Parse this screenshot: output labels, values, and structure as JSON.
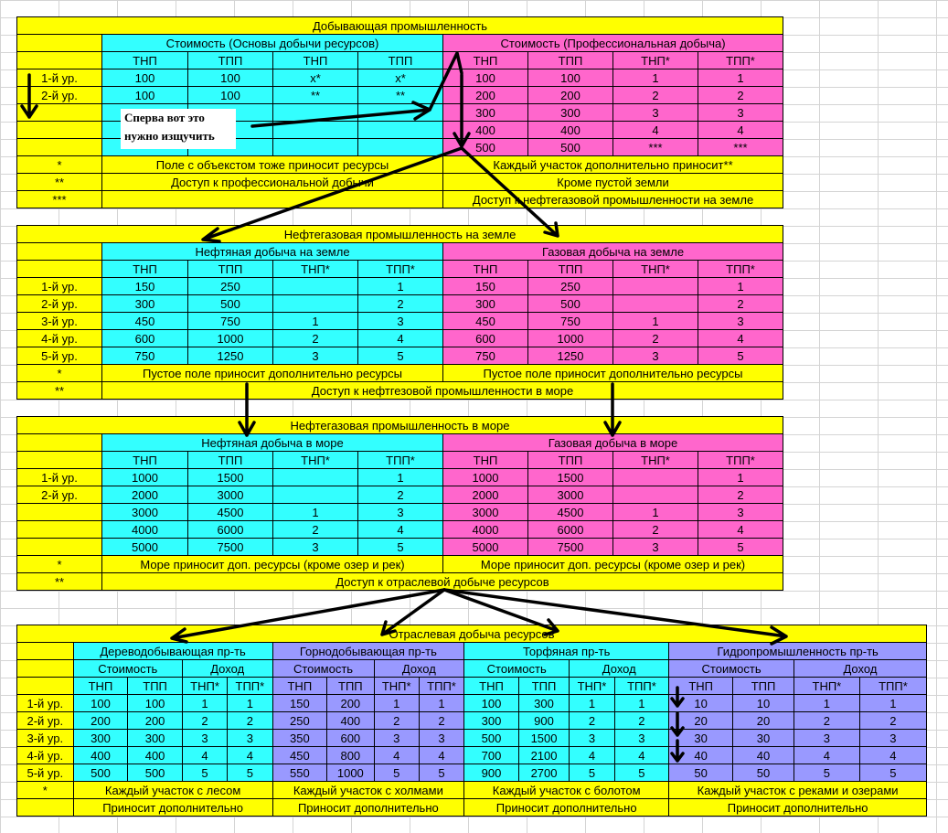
{
  "t1": {
    "title": "Добывающая промышленность",
    "cost_basic": "Стоимость (Основы добычи ресурсов)",
    "cost_pro": "Стоимость (Профессиональная добыча)",
    "h": [
      "ТНП",
      "ТПП",
      "ТНП",
      "ТПП",
      "ТНП",
      "ТПП",
      "ТНП*",
      "ТПП*"
    ],
    "rows": [
      [
        "1-й ур.",
        "100",
        "100",
        "x*",
        "x*",
        "100",
        "100",
        "1",
        "1"
      ],
      [
        "2-й ур.",
        "100",
        "100",
        "**",
        "**",
        "200",
        "200",
        "2",
        "2"
      ],
      [
        "",
        "",
        "",
        "",
        "",
        "300",
        "300",
        "3",
        "3"
      ],
      [
        "",
        "",
        "",
        "",
        "",
        "400",
        "400",
        "4",
        "4"
      ],
      [
        "",
        "",
        "",
        "",
        "",
        "500",
        "500",
        "***",
        "***"
      ]
    ],
    "notes": [
      [
        "*",
        "Поле с объекстом тоже приносит ресурсы",
        "Каждый участок дополнительно приносит**"
      ],
      [
        "**",
        "Доступ к профессиональной добычи",
        "Кроме пустой земли"
      ],
      [
        "***",
        "",
        "Доступ к нефтегазовой промышленности на земле"
      ]
    ]
  },
  "annotation": {
    "line1": "Сперва вот это",
    "line2": "нужно изщучить"
  },
  "t2": {
    "title": "Нефтегазовая промышленность на земле",
    "left": "Нефтяная добыча на земле",
    "right": "Газовая добыча на земле",
    "h": [
      "ТНП",
      "ТПП",
      "ТНП*",
      "ТПП*",
      "ТНП",
      "ТПП",
      "ТНП*",
      "ТПП*"
    ],
    "rows": [
      [
        "1-й ур.",
        "150",
        "250",
        "",
        "1",
        "150",
        "250",
        "",
        "1"
      ],
      [
        "2-й ур.",
        "300",
        "500",
        "",
        "2",
        "300",
        "500",
        "",
        "2"
      ],
      [
        "3-й ур.",
        "450",
        "750",
        "1",
        "3",
        "450",
        "750",
        "1",
        "3"
      ],
      [
        "4-й ур.",
        "600",
        "1000",
        "2",
        "4",
        "600",
        "1000",
        "2",
        "4"
      ],
      [
        "5-й ур.",
        "750",
        "1250",
        "3",
        "5",
        "750",
        "1250",
        "3",
        "5"
      ]
    ],
    "note1": [
      "*",
      "Пустое поле приносит дополнительно ресурсы",
      "Пустое поле приносит дополнительно ресурсы"
    ],
    "note2": [
      "**",
      "Доступ к нефтгезовой промышленности в море"
    ]
  },
  "t3": {
    "title": "Нефтегазовая промышленность в море",
    "left": "Нефтяная добыча в море",
    "right": "Газовая добыча в море",
    "h": [
      "ТНП",
      "ТПП",
      "ТНП*",
      "ТПП*",
      "ТНП",
      "ТПП",
      "ТНП*",
      "ТПП*"
    ],
    "rows": [
      [
        "1-й ур.",
        "1000",
        "1500",
        "",
        "1",
        "1000",
        "1500",
        "",
        "1"
      ],
      [
        "2-й ур.",
        "2000",
        "3000",
        "",
        "2",
        "2000",
        "3000",
        "",
        "2"
      ],
      [
        "",
        "3000",
        "4500",
        "1",
        "3",
        "3000",
        "4500",
        "1",
        "3"
      ],
      [
        "",
        "4000",
        "6000",
        "2",
        "4",
        "4000",
        "6000",
        "2",
        "4"
      ],
      [
        "",
        "5000",
        "7500",
        "3",
        "5",
        "5000",
        "7500",
        "3",
        "5"
      ]
    ],
    "note1": [
      "*",
      "Море приносит доп. ресурсы (кроме озер и рек)",
      "Море приносит доп. ресурсы (кроме озер и рек)"
    ],
    "note2": [
      "**",
      "Доступ к отраслевой добыче ресурсов"
    ]
  },
  "t4": {
    "title": "Отраслевая добыча ресурсов",
    "groups": [
      "Дереводобывающая пр-ть",
      "Горнодобывающая пр-ть",
      "Торфяная пр-ть",
      "Гидропромышленность пр-ть"
    ],
    "cost": "Стоимость",
    "income": "Доход",
    "h": [
      "ТНП",
      "ТПП",
      "ТНП*",
      "ТПП*"
    ],
    "rows": [
      [
        "1-й ур.",
        "100",
        "100",
        "1",
        "1",
        "150",
        "200",
        "1",
        "1",
        "100",
        "300",
        "1",
        "1",
        "10",
        "10",
        "1",
        "1"
      ],
      [
        "2-й ур.",
        "200",
        "200",
        "2",
        "2",
        "250",
        "400",
        "2",
        "2",
        "300",
        "900",
        "2",
        "2",
        "20",
        "20",
        "2",
        "2"
      ],
      [
        "3-й ур.",
        "300",
        "300",
        "3",
        "3",
        "350",
        "600",
        "3",
        "3",
        "500",
        "1500",
        "3",
        "3",
        "30",
        "30",
        "3",
        "3"
      ],
      [
        "4-й ур.",
        "400",
        "400",
        "4",
        "4",
        "450",
        "800",
        "4",
        "4",
        "700",
        "2100",
        "4",
        "4",
        "40",
        "40",
        "4",
        "4"
      ],
      [
        "5-й ур.",
        "500",
        "500",
        "5",
        "5",
        "550",
        "1000",
        "5",
        "5",
        "900",
        "2700",
        "5",
        "5",
        "50",
        "50",
        "5",
        "5"
      ]
    ],
    "note1": [
      "*",
      "Каждый участок с лесом",
      "Каждый участок с холмами",
      "Каждый участок с болотом",
      "Каждый участок с реками и озерами"
    ],
    "note2": [
      "Приносит дополнительно",
      "Приносит дополнительно",
      "Приносит дополнительно",
      "Приносит дополнительно"
    ]
  }
}
